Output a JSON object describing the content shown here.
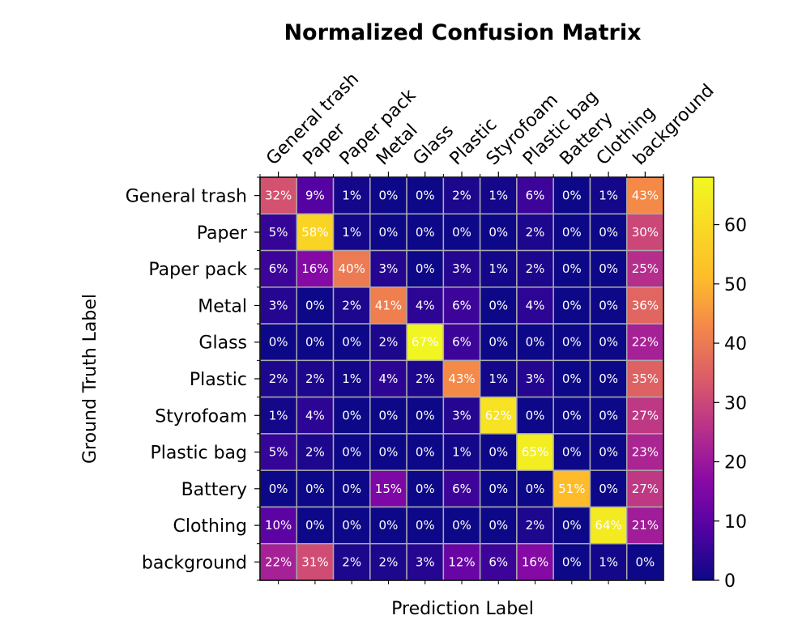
{
  "chart_data": {
    "type": "heatmap",
    "title": "Normalized Confusion Matrix",
    "xlabel": "Prediction Label",
    "ylabel": "Ground Truth Label",
    "x_categories": [
      "General trash",
      "Paper",
      "Paper pack",
      "Metal",
      "Glass",
      "Plastic",
      "Styrofoam",
      "Plastic bag",
      "Battery",
      "Clothing",
      "background"
    ],
    "y_categories": [
      "General trash",
      "Paper",
      "Paper pack",
      "Metal",
      "Glass",
      "Plastic",
      "Styrofoam",
      "Plastic bag",
      "Battery",
      "Clothing",
      "background"
    ],
    "values": [
      [
        32,
        9,
        1,
        0,
        0,
        2,
        1,
        6,
        0,
        1,
        43
      ],
      [
        5,
        58,
        1,
        0,
        0,
        0,
        0,
        2,
        0,
        0,
        30
      ],
      [
        6,
        16,
        40,
        3,
        0,
        3,
        1,
        2,
        0,
        0,
        25
      ],
      [
        3,
        0,
        2,
        41,
        4,
        6,
        0,
        4,
        0,
        0,
        36
      ],
      [
        0,
        0,
        0,
        2,
        67,
        6,
        0,
        0,
        0,
        0,
        22
      ],
      [
        2,
        2,
        1,
        4,
        2,
        43,
        1,
        3,
        0,
        0,
        35
      ],
      [
        1,
        4,
        0,
        0,
        0,
        3,
        62,
        0,
        0,
        0,
        27
      ],
      [
        5,
        2,
        0,
        0,
        0,
        1,
        0,
        65,
        0,
        0,
        23
      ],
      [
        0,
        0,
        0,
        15,
        0,
        6,
        0,
        0,
        51,
        0,
        27
      ],
      [
        10,
        0,
        0,
        0,
        0,
        0,
        0,
        2,
        0,
        64,
        21
      ],
      [
        22,
        31,
        2,
        2,
        3,
        12,
        6,
        16,
        0,
        1,
        0
      ]
    ],
    "value_suffix": "%",
    "colormap": "plasma",
    "colorbar": {
      "range": [
        0,
        68
      ],
      "ticks": [
        0,
        10,
        20,
        30,
        40,
        50,
        60
      ]
    },
    "grid": true,
    "cell_border_color": "#aaaaaa",
    "annotation_color": "#ffffff"
  }
}
